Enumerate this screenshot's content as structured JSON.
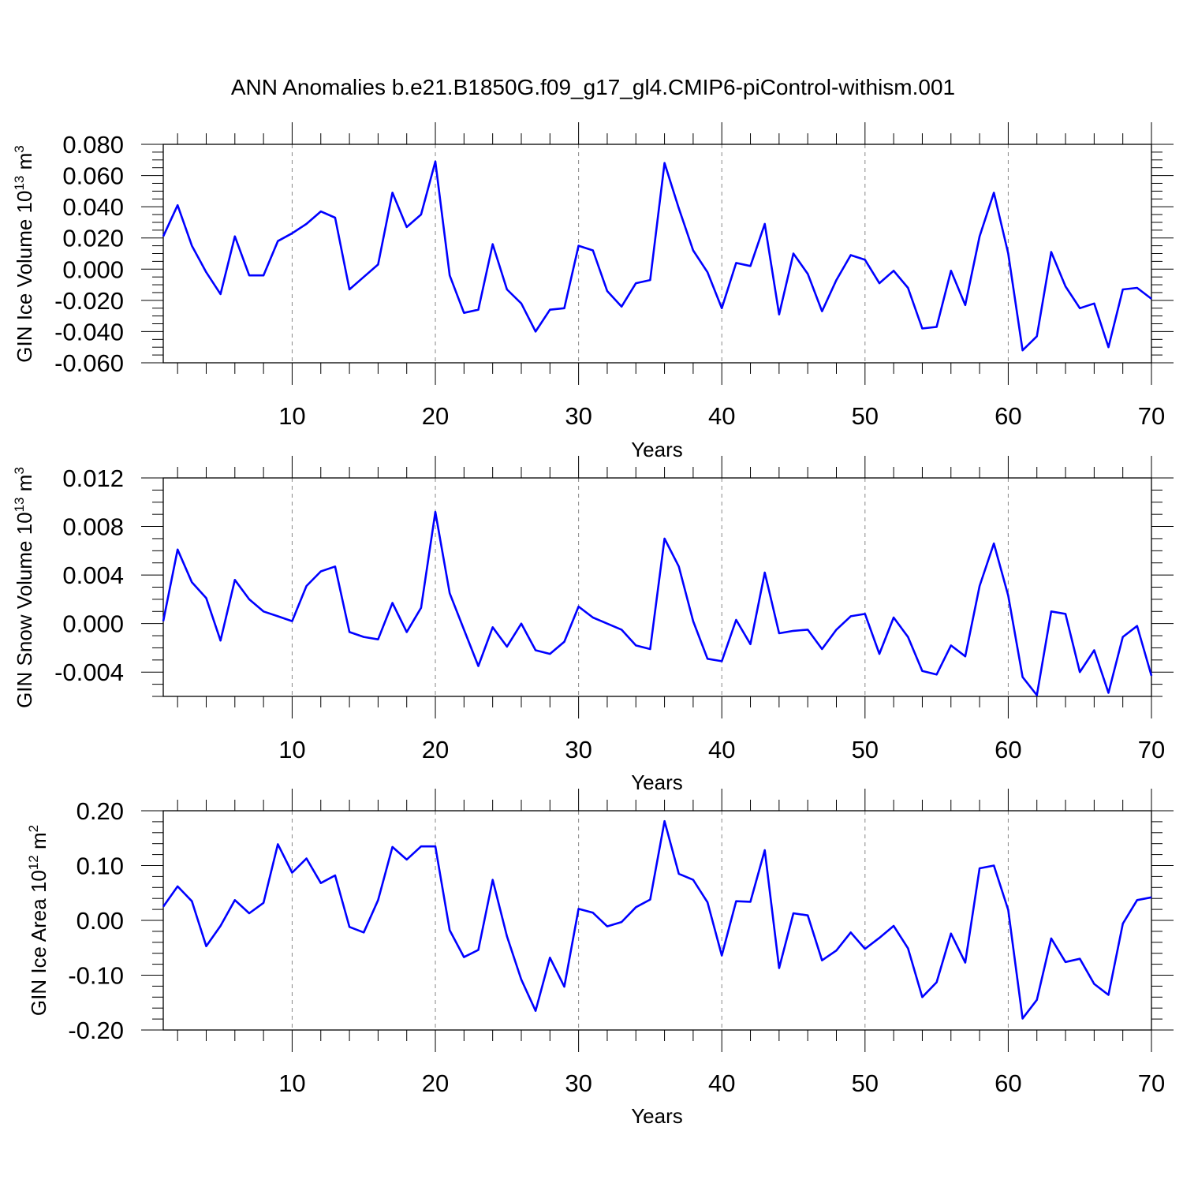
{
  "title": "ANN Anomalies b.e21.B1850G.f09_g17_gl4.CMIP6-piControl-withism.001",
  "line_color": "#0000ff",
  "chart_data": [
    {
      "type": "line",
      "name": "ice-volume",
      "xlabel": "Years",
      "ylabel": "GIN Ice Volume 10",
      "ylabel_exp": "13",
      "ylabel_unit": " m",
      "ylabel_unit_exp": "3",
      "xlim": [
        1,
        70
      ],
      "ylim": [
        -0.06,
        0.08
      ],
      "x_ticks": [
        10,
        20,
        30,
        40,
        50,
        60,
        70
      ],
      "x_tick_labels": [
        "10",
        "20",
        "30",
        "40",
        "50",
        "60",
        "70"
      ],
      "y_ticks": [
        -0.06,
        -0.04,
        -0.02,
        0.0,
        0.02,
        0.04,
        0.06,
        0.08
      ],
      "y_tick_labels": [
        "-0.060",
        "-0.040",
        "-0.020",
        "0.000",
        "0.020",
        "0.040",
        "0.060",
        "0.080"
      ],
      "y_minor_step": 0.005,
      "grid": "x-dashed",
      "values": [
        0.021,
        0.041,
        0.015,
        -0.002,
        -0.016,
        0.021,
        -0.004,
        -0.004,
        0.018,
        0.023,
        0.029,
        0.037,
        0.033,
        -0.013,
        -0.005,
        0.003,
        0.049,
        0.027,
        0.035,
        0.069,
        -0.004,
        -0.028,
        -0.026,
        0.016,
        -0.013,
        -0.022,
        -0.04,
        -0.026,
        -0.025,
        0.015,
        0.012,
        -0.014,
        -0.024,
        -0.009,
        -0.007,
        0.068,
        0.039,
        0.012,
        -0.002,
        -0.025,
        0.004,
        0.002,
        0.029,
        -0.029,
        0.01,
        -0.003,
        -0.027,
        -0.007,
        0.009,
        0.006,
        -0.009,
        -0.001,
        -0.012,
        -0.038,
        -0.037,
        -0.001,
        -0.023,
        0.021,
        0.049,
        0.01,
        -0.052,
        -0.043,
        0.011,
        -0.011,
        -0.025,
        -0.022,
        -0.05,
        -0.013,
        -0.012,
        -0.019
      ]
    },
    {
      "type": "line",
      "name": "snow-volume",
      "xlabel": "Years",
      "ylabel": "GIN Snow Volume 10",
      "ylabel_exp": "13",
      "ylabel_unit": " m",
      "ylabel_unit_exp": "3",
      "xlim": [
        1,
        70
      ],
      "ylim": [
        -0.006,
        0.012
      ],
      "x_ticks": [
        10,
        20,
        30,
        40,
        50,
        60,
        70
      ],
      "x_tick_labels": [
        "10",
        "20",
        "30",
        "40",
        "50",
        "60",
        "70"
      ],
      "y_ticks": [
        -0.004,
        0.0,
        0.004,
        0.008,
        0.012
      ],
      "y_tick_labels": [
        "-0.004",
        "0.000",
        "0.004",
        "0.008",
        "0.012"
      ],
      "y_minor_step": 0.001,
      "grid": "x-dashed",
      "values": [
        0.0002,
        0.0061,
        0.0034,
        0.0021,
        -0.0014,
        0.0036,
        0.002,
        0.001,
        0.0006,
        0.0002,
        0.0031,
        0.0043,
        0.0047,
        -0.0007,
        -0.0011,
        -0.0013,
        0.0017,
        -0.0007,
        0.0013,
        0.0092,
        0.0025,
        -0.0005,
        -0.0035,
        -0.0003,
        -0.0019,
        0.0,
        -0.0022,
        -0.0025,
        -0.0015,
        0.0014,
        0.0005,
        0.0,
        -0.0005,
        -0.0018,
        -0.0021,
        0.007,
        0.0047,
        0.0002,
        -0.0029,
        -0.0031,
        0.0003,
        -0.0017,
        0.0042,
        -0.0008,
        -0.0006,
        -0.0005,
        -0.0021,
        -0.0005,
        0.0006,
        0.0008,
        -0.0025,
        0.0005,
        -0.0011,
        -0.0039,
        -0.0042,
        -0.0018,
        -0.0027,
        0.0031,
        0.0066,
        0.0023,
        -0.0044,
        -0.0059,
        0.001,
        0.0008,
        -0.004,
        -0.0022,
        -0.0057,
        -0.0011,
        -0.0002,
        -0.0043
      ]
    },
    {
      "type": "line",
      "name": "ice-area",
      "xlabel": "Years",
      "ylabel": "GIN Ice Area 10",
      "ylabel_exp": "12",
      "ylabel_unit": " m",
      "ylabel_unit_exp": "2",
      "xlim": [
        1,
        70
      ],
      "ylim": [
        -0.2,
        0.2
      ],
      "x_ticks": [
        10,
        20,
        30,
        40,
        50,
        60,
        70
      ],
      "x_tick_labels": [
        "10",
        "20",
        "30",
        "40",
        "50",
        "60",
        "70"
      ],
      "y_ticks": [
        -0.2,
        -0.1,
        0.0,
        0.1,
        0.2
      ],
      "y_tick_labels": [
        "-0.20",
        "-0.10",
        "0.00",
        "0.10",
        "0.20"
      ],
      "y_minor_step": 0.02,
      "grid": "x-dashed",
      "values": [
        0.025,
        0.062,
        0.035,
        -0.047,
        -0.01,
        0.037,
        0.013,
        0.032,
        0.139,
        0.087,
        0.113,
        0.068,
        0.082,
        -0.012,
        -0.022,
        0.037,
        0.134,
        0.111,
        0.135,
        0.135,
        -0.018,
        -0.067,
        -0.054,
        0.074,
        -0.029,
        -0.108,
        -0.165,
        -0.068,
        -0.121,
        0.021,
        0.014,
        -0.011,
        -0.003,
        0.024,
        0.038,
        0.181,
        0.085,
        0.074,
        0.033,
        -0.064,
        0.035,
        0.034,
        0.128,
        -0.087,
        0.013,
        0.009,
        -0.073,
        -0.055,
        -0.022,
        -0.052,
        -0.032,
        -0.01,
        -0.051,
        -0.14,
        -0.113,
        -0.024,
        -0.077,
        0.095,
        0.1,
        0.019,
        -0.179,
        -0.145,
        -0.033,
        -0.076,
        -0.07,
        -0.116,
        -0.136,
        -0.006,
        0.037,
        0.042
      ]
    }
  ]
}
